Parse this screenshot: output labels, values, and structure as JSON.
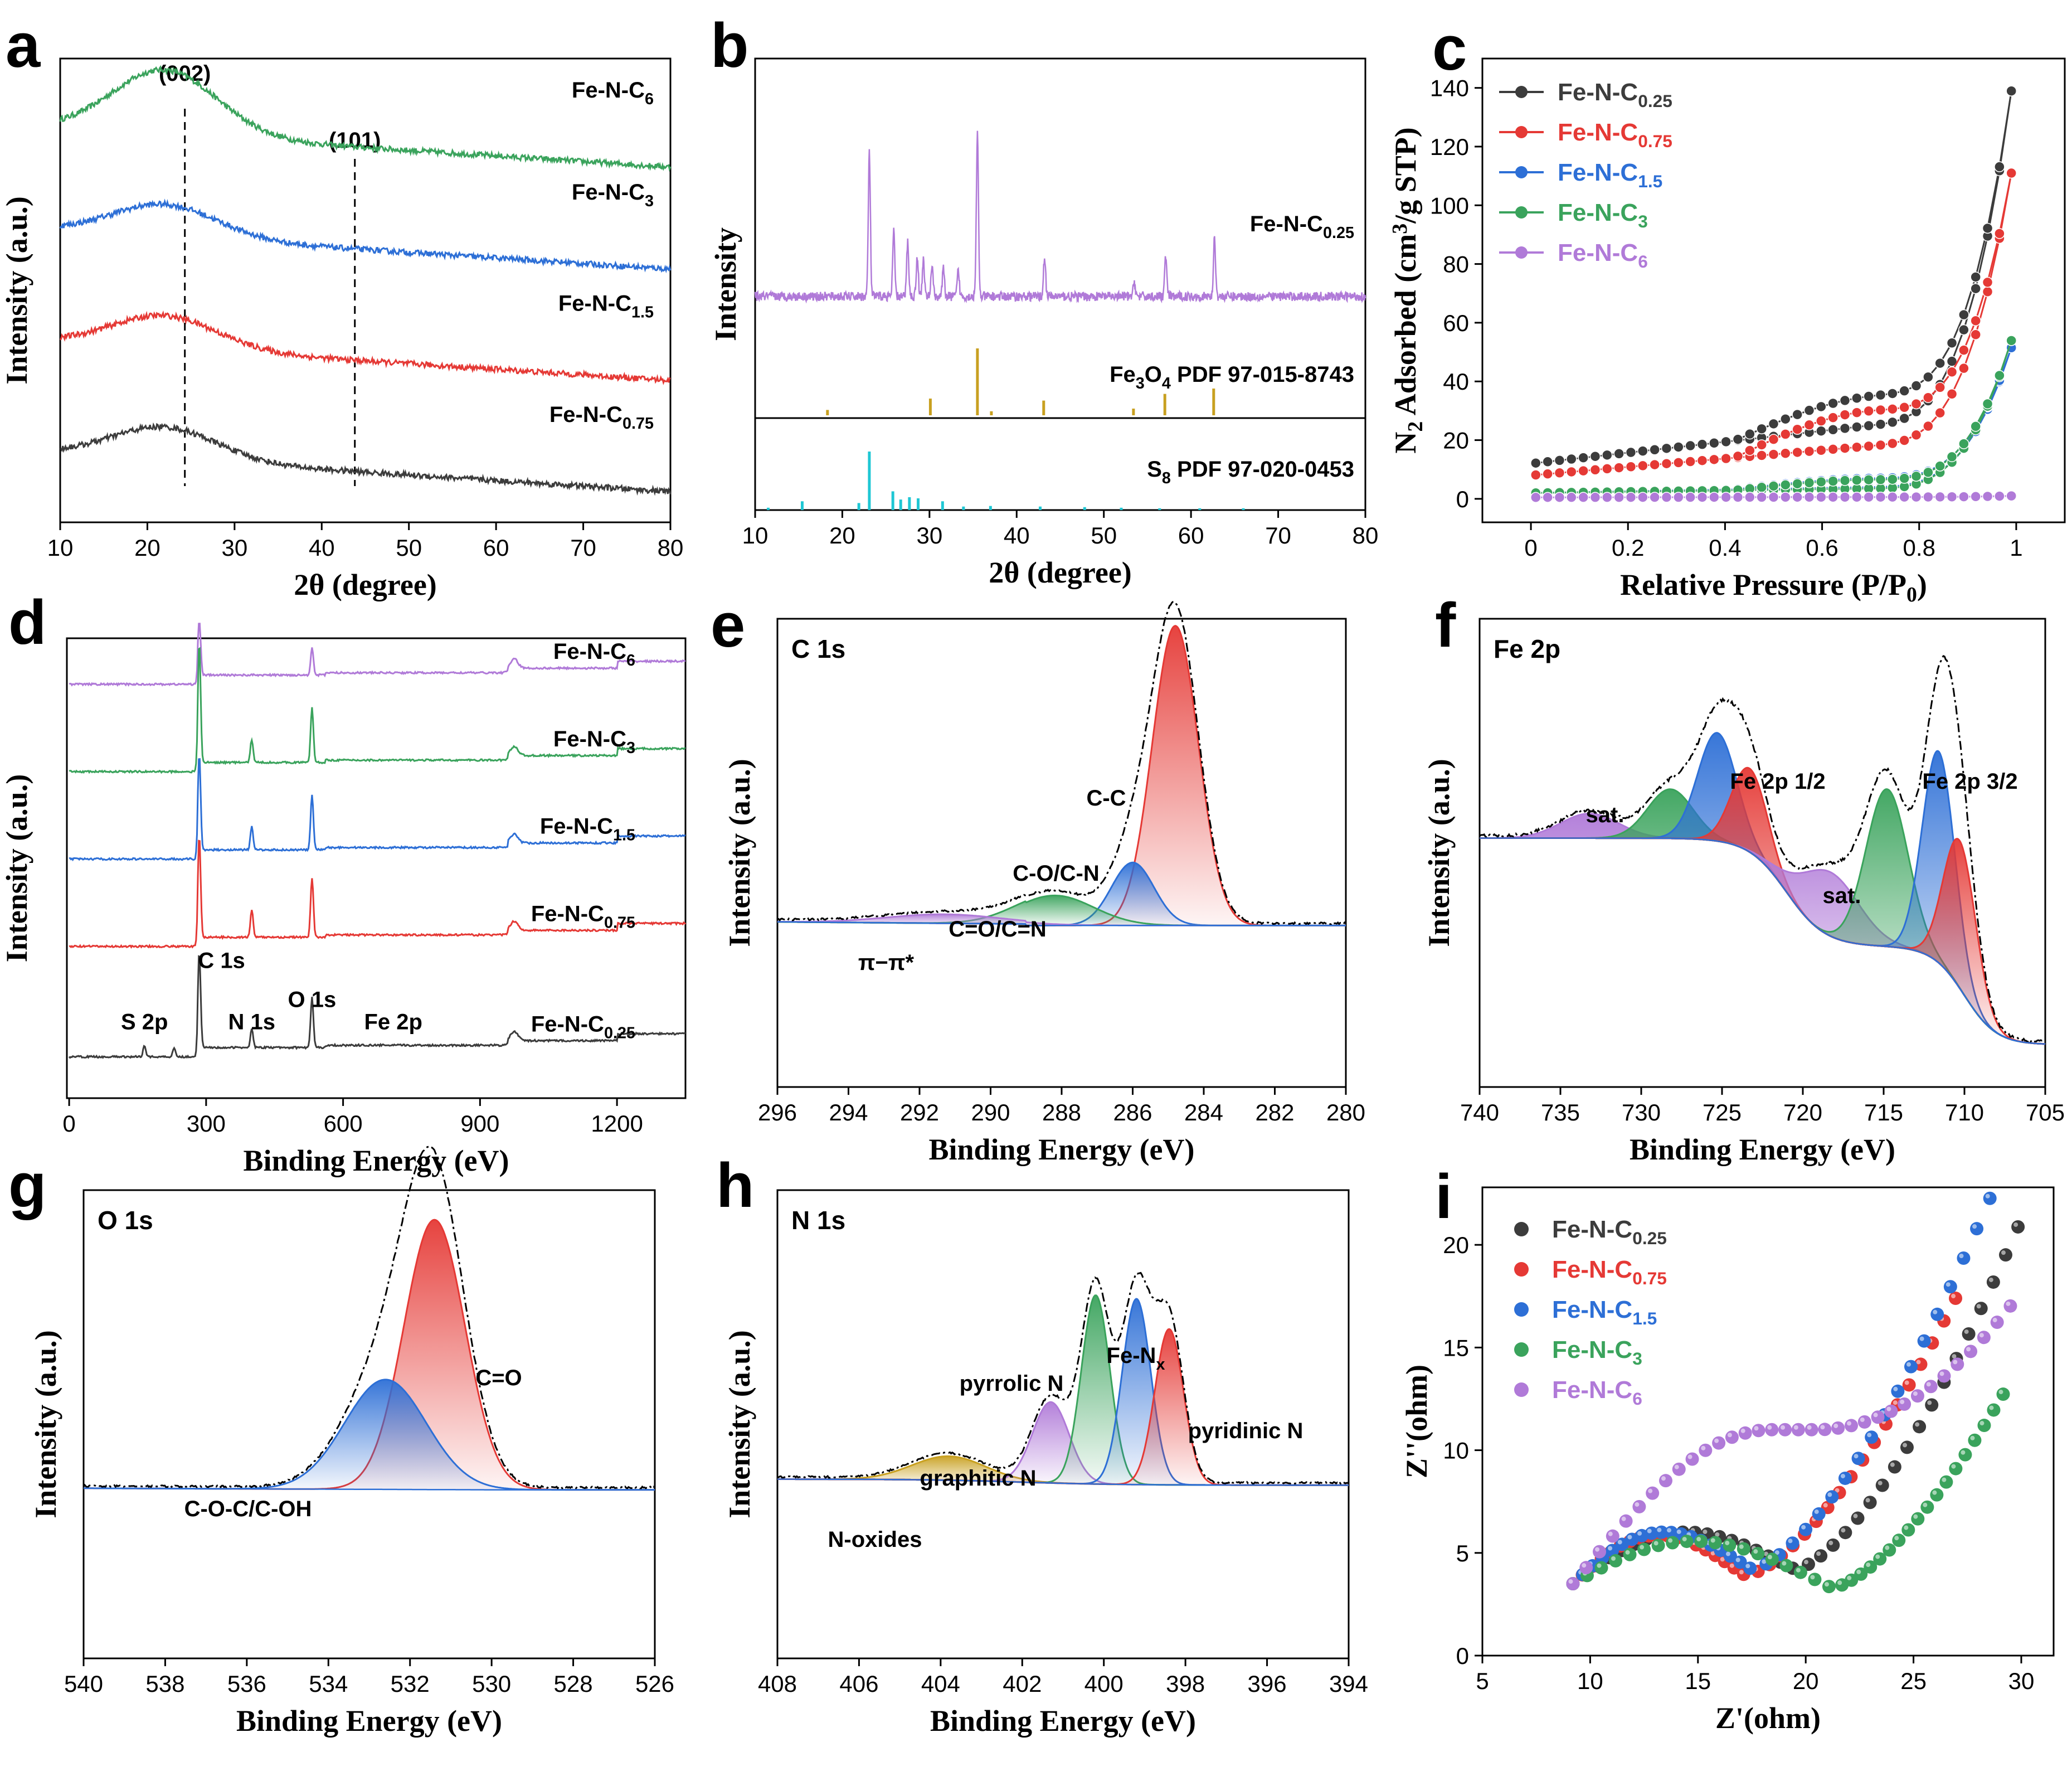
{
  "chart_data": [
    {
      "panel": "a",
      "type": "line",
      "xlabel": "2θ (degree)",
      "ylabel": "Intensity (a.u.)",
      "xlim": [
        10,
        80
      ],
      "xticks": [
        10,
        20,
        30,
        40,
        50,
        60,
        70,
        80
      ],
      "peaks": [
        {
          "label": "(002)",
          "x": 24.3
        },
        {
          "label": "(101)",
          "x": 43.8
        }
      ],
      "series": [
        {
          "name": "Fe-N-C",
          "sub": "6",
          "color": "#3aa35c",
          "level": 0.85,
          "hump": 0.14
        },
        {
          "name": "Fe-N-C",
          "sub": "3",
          "color": "#2d6fd6",
          "level": 0.63,
          "hump": 0.07
        },
        {
          "name": "Fe-N-C",
          "sub": "1.5",
          "color": "#e53935",
          "level": 0.39,
          "hump": 0.07
        },
        {
          "name": "Fe-N-C",
          "sub": "0.75",
          "color": "#3c3c3c",
          "level": 0.15,
          "hump": 0.07
        }
      ]
    },
    {
      "panel": "b",
      "type": "line",
      "xlabel": "2θ (degree)",
      "ylabel": "Intensity",
      "xlim": [
        10,
        80
      ],
      "xticks": [
        10,
        20,
        30,
        40,
        50,
        60,
        70,
        80
      ],
      "sample": {
        "name": "Fe-N-C",
        "sub": "0.25",
        "color": "#b07ad8"
      },
      "sample_peaks": [
        [
          23.1,
          0.78
        ],
        [
          25.9,
          0.35
        ],
        [
          27.5,
          0.3
        ],
        [
          28.6,
          0.22
        ],
        [
          29.3,
          0.2
        ],
        [
          30.3,
          0.18
        ],
        [
          31.6,
          0.15
        ],
        [
          33.3,
          0.14
        ],
        [
          35.5,
          0.88
        ],
        [
          43.2,
          0.22
        ],
        [
          53.5,
          0.08
        ],
        [
          57.1,
          0.22
        ],
        [
          62.7,
          0.32
        ]
      ],
      "references": [
        {
          "label": "Fe3O4 PDF 97-015-8743",
          "formula": "Fe",
          "sub": "3",
          "formula2": "O",
          "sub2": "4",
          "rest": "PDF 97-015-8743",
          "color": "#c8a020",
          "lines": [
            [
              18.3,
              0.08
            ],
            [
              30.1,
              0.25
            ],
            [
              35.5,
              1.0
            ],
            [
              37.1,
              0.06
            ],
            [
              43.1,
              0.22
            ],
            [
              53.4,
              0.1
            ],
            [
              57.0,
              0.32
            ],
            [
              62.6,
              0.4
            ]
          ]
        },
        {
          "label": "S8 PDF 97-020-0453",
          "formula": "S",
          "sub": "8",
          "rest": "PDF 97-020-0453",
          "color": "#1fc7d4",
          "lines": [
            [
              11.5,
              0.04
            ],
            [
              15.4,
              0.15
            ],
            [
              21.9,
              0.12
            ],
            [
              23.1,
              1.0
            ],
            [
              25.8,
              0.32
            ],
            [
              26.7,
              0.18
            ],
            [
              27.7,
              0.22
            ],
            [
              28.7,
              0.2
            ],
            [
              31.5,
              0.15
            ],
            [
              33.9,
              0.06
            ],
            [
              37.0,
              0.07
            ],
            [
              42.7,
              0.06
            ],
            [
              47.8,
              0.05
            ],
            [
              52.0,
              0.04
            ],
            [
              56.4,
              0.03
            ],
            [
              61.0,
              0.03
            ],
            [
              66.0,
              0.03
            ]
          ]
        }
      ]
    },
    {
      "panel": "c",
      "type": "line",
      "xlabel": "Relative Pressure (P/P",
      "xlabel_sub": "0",
      "xlabel_end": ")",
      "ylabel": "N2 Adsorbed (cm3/g STP)",
      "ylabel_parts": [
        "N",
        "2",
        " Adsorbed (cm",
        "3",
        "/g STP)"
      ],
      "xlim": [
        -0.1,
        1.1
      ],
      "ylim": [
        -8,
        150
      ],
      "xticks": [
        0.0,
        0.2,
        0.4,
        0.6,
        0.8,
        1.0
      ],
      "yticks": [
        0,
        20,
        40,
        60,
        80,
        100,
        120,
        140
      ],
      "series": [
        {
          "name": "Fe-N-C",
          "sub": "0.25",
          "color": "#3c3c3c",
          "start": 12,
          "mid": 25,
          "end": 146,
          "hyst": 10
        },
        {
          "name": "Fe-N-C",
          "sub": "0.75",
          "color": "#e53935",
          "start": 8,
          "mid": 18,
          "end": 117,
          "hyst": 12
        },
        {
          "name": "Fe-N-C",
          "sub": "1.5",
          "color": "#2d6fd6",
          "start": 2,
          "mid": 4,
          "end": 56,
          "hyst": 3
        },
        {
          "name": "Fe-N-C",
          "sub": "3",
          "color": "#3aa35c",
          "start": 2,
          "mid": 3.5,
          "end": 59,
          "hyst": 3
        },
        {
          "name": "Fe-N-C",
          "sub": "6",
          "color": "#b07ad8",
          "start": 0.5,
          "mid": 0.6,
          "end": 1,
          "hyst": 0
        }
      ]
    },
    {
      "panel": "d",
      "type": "line",
      "xlabel": "Binding Energy (eV)",
      "ylabel": "Intensity (a.u.)",
      "xlim": [
        -5,
        1350
      ],
      "xticks": [
        0,
        300,
        600,
        900,
        1200
      ],
      "core_labels": [
        {
          "label": "S 2p",
          "x": 165
        },
        {
          "label": "C 1s",
          "x": 285
        },
        {
          "label": "N 1s",
          "x": 400
        },
        {
          "label": "O 1s",
          "x": 532
        },
        {
          "label": "Fe 2p",
          "x": 710
        }
      ],
      "series": [
        {
          "name": "Fe-N-C",
          "sub": "6",
          "color": "#b07ad8",
          "level": 0.9,
          "c": 0.12,
          "n": 0.0,
          "o": 0.06
        },
        {
          "name": "Fe-N-C",
          "sub": "3",
          "color": "#3aa35c",
          "level": 0.71,
          "c": 0.26,
          "n": 0.05,
          "o": 0.12
        },
        {
          "name": "Fe-N-C",
          "sub": "1.5",
          "color": "#2d6fd6",
          "level": 0.52,
          "c": 0.21,
          "n": 0.05,
          "o": 0.12
        },
        {
          "name": "Fe-N-C",
          "sub": "0.75",
          "color": "#e53935",
          "level": 0.33,
          "c": 0.22,
          "n": 0.06,
          "o": 0.13
        },
        {
          "name": "Fe-N-C",
          "sub": "0.25",
          "color": "#3c3c3c",
          "level": 0.09,
          "c": 0.21,
          "n": 0.04,
          "o": 0.11
        }
      ]
    },
    {
      "panel": "e",
      "type": "area",
      "title": "C 1s",
      "xlabel": "Binding Energy (eV)",
      "ylabel": "Intensity (a.u.)",
      "xlim": [
        296,
        280
      ],
      "xticks": [
        296,
        294,
        292,
        290,
        288,
        286,
        284,
        282,
        280
      ],
      "components": [
        {
          "label": "C-C",
          "center": 284.8,
          "height": 1.0,
          "width": 0.65,
          "color": "#e53935"
        },
        {
          "label": "C-O/C-N",
          "center": 286.0,
          "height": 0.21,
          "width": 0.6,
          "color": "#2d6fd6"
        },
        {
          "label": "C=O/C=N",
          "center": 288.2,
          "height": 0.1,
          "width": 1.1,
          "color": "#3aa35c"
        },
        {
          "label": "π−π*",
          "center": 291.3,
          "height": 0.03,
          "width": 1.6,
          "color": "#b07ad8"
        }
      ]
    },
    {
      "panel": "f",
      "type": "area",
      "title": "Fe 2p",
      "xlabel": "Binding Energy (eV)",
      "ylabel": "Intensity (a.u.)",
      "xlim": [
        740,
        705
      ],
      "xticks": [
        740,
        735,
        730,
        725,
        720,
        715,
        710,
        705
      ],
      "peak_labels": [
        "Fe 2p 1/2",
        "Fe 2p 3/2",
        "sat.",
        "sat."
      ],
      "components": [
        {
          "center": 733.2,
          "height": 0.05,
          "width": 1.8,
          "color": "#b07ad8"
        },
        {
          "center": 728.2,
          "height": 0.1,
          "width": 1.4,
          "color": "#3aa35c"
        },
        {
          "center": 725.3,
          "height": 0.22,
          "width": 1.2,
          "color": "#2d6fd6"
        },
        {
          "center": 723.3,
          "height": 0.17,
          "width": 1.1,
          "color": "#e53935"
        },
        {
          "center": 718.3,
          "height": 0.13,
          "width": 1.8,
          "color": "#b07ad8"
        },
        {
          "center": 714.8,
          "height": 0.32,
          "width": 1.3,
          "color": "#3aa35c"
        },
        {
          "center": 711.6,
          "height": 0.43,
          "width": 1.0,
          "color": "#2d6fd6"
        },
        {
          "center": 710.3,
          "height": 0.3,
          "width": 1.0,
          "color": "#e53935"
        }
      ]
    },
    {
      "panel": "g",
      "type": "area",
      "title": "O 1s",
      "xlabel": "Binding Energy (eV)",
      "ylabel": "Intensity (a.u.)",
      "xlim": [
        540,
        526
      ],
      "xticks": [
        540,
        538,
        536,
        534,
        532,
        530,
        528,
        526
      ],
      "components": [
        {
          "label": "C=O",
          "center": 531.4,
          "height": 0.86,
          "width": 0.75,
          "color": "#e53935"
        },
        {
          "label": "C-O-C/C-OH",
          "center": 532.6,
          "height": 0.35,
          "width": 1.0,
          "color": "#2d6fd6"
        }
      ]
    },
    {
      "panel": "h",
      "type": "area",
      "title": "N 1s",
      "xlabel": "Binding Energy (eV)",
      "ylabel": "Intensity (a.u.)",
      "xlim": [
        408,
        394
      ],
      "xticks": [
        408,
        406,
        404,
        402,
        400,
        398,
        396,
        394
      ],
      "components": [
        {
          "label": "N-oxides",
          "center": 403.8,
          "height": 0.08,
          "width": 0.9,
          "color": "#c8a020"
        },
        {
          "label": "graphitic N",
          "center": 401.3,
          "height": 0.27,
          "width": 0.45,
          "color": "#b07ad8"
        },
        {
          "label": "pyrrolic N",
          "center": 400.2,
          "height": 0.63,
          "width": 0.35,
          "color": "#3aa35c"
        },
        {
          "label": "Fe-Nx",
          "base": "Fe-N",
          "sub": "x",
          "center": 399.2,
          "height": 0.62,
          "width": 0.35,
          "color": "#2d6fd6"
        },
        {
          "label": "pyridinic N",
          "center": 398.4,
          "height": 0.52,
          "width": 0.35,
          "color": "#e53935"
        }
      ]
    },
    {
      "panel": "i",
      "type": "scatter",
      "xlabel": "Z'(ohm)",
      "ylabel": "Z''(ohm)",
      "xlim": [
        5,
        31.5
      ],
      "ylim": [
        0,
        22.8
      ],
      "xticks": [
        5,
        10,
        15,
        20,
        25,
        30
      ],
      "yticks": [
        0,
        5,
        10,
        15,
        20
      ],
      "series": [
        {
          "name": "Fe-N-C",
          "sub": "0.25",
          "color": "#3c3c3c",
          "x0": 9.2,
          "xmin": 19.5,
          "ymin": 4.2,
          "end": [
            29.9,
            21
          ]
        },
        {
          "name": "Fe-N-C",
          "sub": "0.75",
          "color": "#e53935",
          "x0": 9.2,
          "xmin": 17.2,
          "ymin": 3.9,
          "end": [
            27.0,
            17.5
          ]
        },
        {
          "name": "Fe-N-C",
          "sub": "1.5",
          "color": "#2d6fd6",
          "x0": 9.2,
          "xmin": 17.5,
          "ymin": 4.2,
          "end": [
            28.6,
            22.4
          ]
        },
        {
          "name": "Fe-N-C",
          "sub": "3",
          "color": "#3aa35c",
          "x0": 9.2,
          "xmin": 21.2,
          "ymin": 3.3,
          "end": [
            29.2,
            12.8
          ]
        },
        {
          "name": "Fe-N-C",
          "sub": "6",
          "color": "#b07ad8",
          "x0": 9.2,
          "xmin": null,
          "ymin": null,
          "end": [
            29.7,
            17.3
          ]
        }
      ]
    }
  ]
}
